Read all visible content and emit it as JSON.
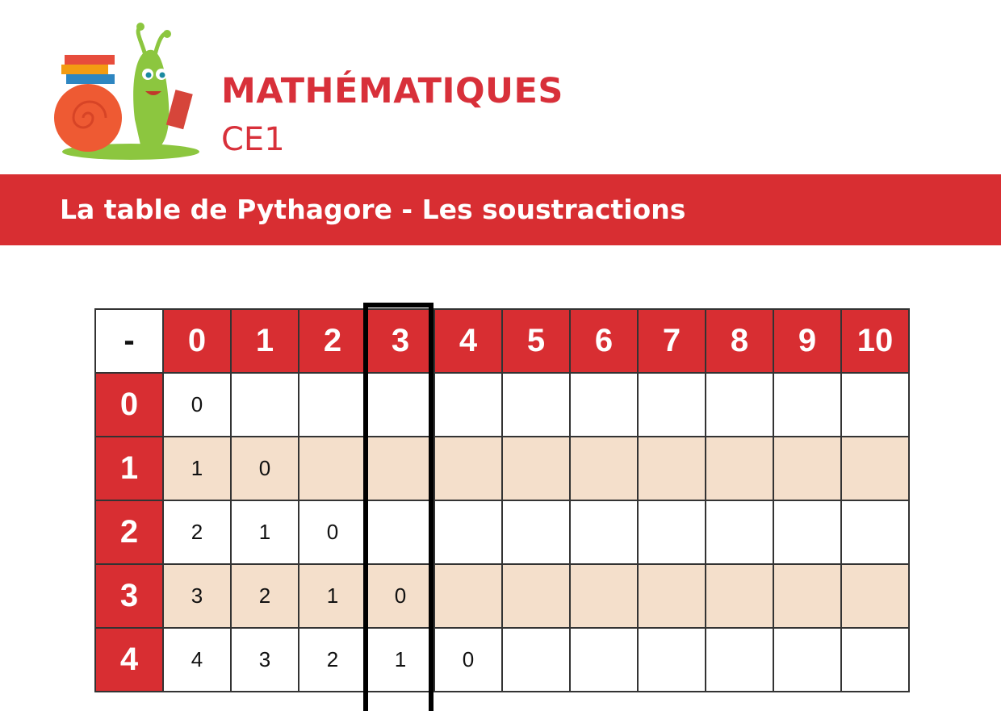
{
  "header": {
    "title": "MATHÉMATIQUES",
    "level": "CE1",
    "logo_icon": "snail-with-books-logo"
  },
  "banner": {
    "text": "La table de Pythagore - Les soustractions"
  },
  "colors": {
    "accent": "#d82e32",
    "row_alt": "#f4dfcb"
  },
  "table": {
    "corner": "-",
    "columns": [
      "0",
      "1",
      "2",
      "3",
      "4",
      "5",
      "6",
      "7",
      "8",
      "9",
      "10"
    ],
    "highlighted_column": "3",
    "rows": [
      {
        "label": "0",
        "cells": [
          "0",
          "",
          "",
          "",
          "",
          "",
          "",
          "",
          "",
          "",
          ""
        ]
      },
      {
        "label": "1",
        "cells": [
          "1",
          "0",
          "",
          "",
          "",
          "",
          "",
          "",
          "",
          "",
          ""
        ]
      },
      {
        "label": "2",
        "cells": [
          "2",
          "1",
          "0",
          "",
          "",
          "",
          "",
          "",
          "",
          "",
          ""
        ]
      },
      {
        "label": "3",
        "cells": [
          "3",
          "2",
          "1",
          "0",
          "",
          "",
          "",
          "",
          "",
          "",
          ""
        ]
      },
      {
        "label": "4",
        "cells": [
          "4",
          "3",
          "2",
          "1",
          "0",
          "",
          "",
          "",
          "",
          "",
          ""
        ]
      }
    ]
  }
}
